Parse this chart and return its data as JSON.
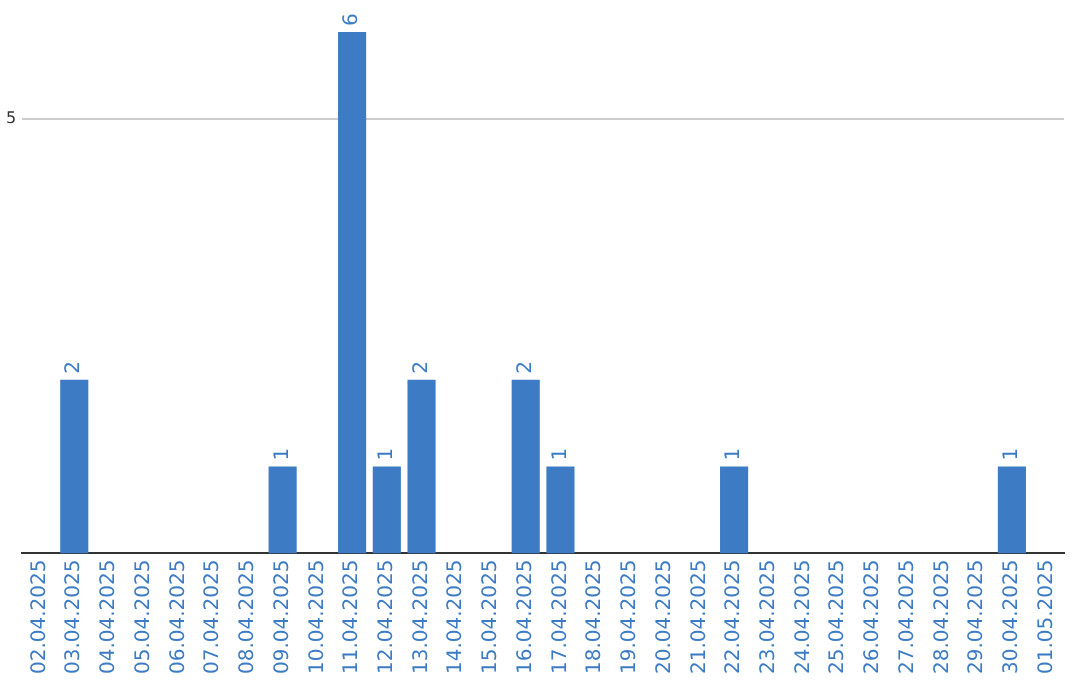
{
  "chart_data": {
    "type": "bar",
    "categories": [
      "02.04.2025",
      "03.04.2025",
      "04.04.2025",
      "05.04.2025",
      "06.04.2025",
      "07.04.2025",
      "08.04.2025",
      "09.04.2025",
      "10.04.2025",
      "11.04.2025",
      "12.04.2025",
      "13.04.2025",
      "14.04.2025",
      "15.04.2025",
      "16.04.2025",
      "17.04.2025",
      "18.04.2025",
      "19.04.2025",
      "20.04.2025",
      "21.04.2025",
      "22.04.2025",
      "23.04.2025",
      "24.04.2025",
      "25.04.2025",
      "26.04.2025",
      "27.04.2025",
      "28.04.2025",
      "29.04.2025",
      "30.04.2025",
      "01.05.2025"
    ],
    "values": [
      0,
      2,
      0,
      0,
      0,
      0,
      0,
      1,
      0,
      6,
      1,
      2,
      0,
      0,
      2,
      1,
      0,
      0,
      0,
      0,
      1,
      0,
      0,
      0,
      0,
      0,
      0,
      0,
      1,
      0
    ],
    "value_labels": [
      null,
      "2",
      null,
      null,
      null,
      null,
      null,
      "1",
      null,
      "6",
      "1",
      "2",
      null,
      null,
      "2",
      "1",
      null,
      null,
      null,
      null,
      "1",
      null,
      null,
      null,
      null,
      null,
      null,
      null,
      "1",
      null
    ],
    "color": "#3d7cc4",
    "ylim": [
      0,
      6
    ],
    "yticks": [
      5
    ],
    "grid": "y",
    "legend": false
  }
}
